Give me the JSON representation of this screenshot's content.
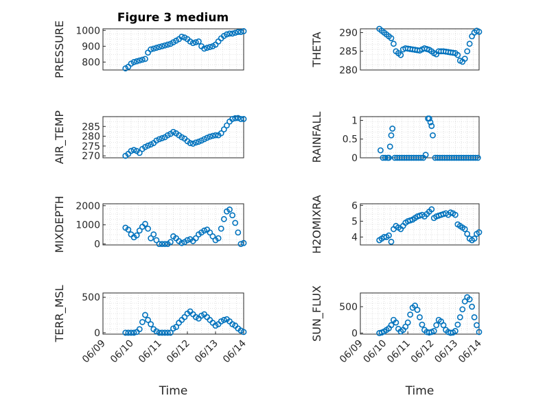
{
  "figure": {
    "title": "Figure 3 medium"
  },
  "chart_data": [
    {
      "type": "scatter",
      "ylabel": "PRESSURE",
      "xlabel": "",
      "xlim": [
        0,
        5
      ],
      "ylim": [
        750,
        1010
      ],
      "yticks": [
        800,
        900,
        1000
      ],
      "xticks": [],
      "xticklabels": [],
      "x": [
        0.8,
        0.9,
        1.0,
        1.1,
        1.2,
        1.3,
        1.4,
        1.5,
        1.6,
        1.7,
        1.8,
        1.9,
        2.0,
        2.1,
        2.2,
        2.3,
        2.4,
        2.5,
        2.6,
        2.7,
        2.8,
        2.9,
        3.0,
        3.1,
        3.2,
        3.3,
        3.4,
        3.5,
        3.6,
        3.7,
        3.8,
        3.9,
        4.0,
        4.1,
        4.2,
        4.3,
        4.4,
        4.5,
        4.6,
        4.7,
        4.8,
        4.9,
        5.0
      ],
      "values": [
        760,
        770,
        790,
        800,
        805,
        810,
        815,
        820,
        860,
        880,
        885,
        890,
        895,
        900,
        905,
        910,
        915,
        925,
        935,
        945,
        960,
        955,
        945,
        930,
        920,
        925,
        930,
        900,
        885,
        890,
        895,
        900,
        910,
        930,
        950,
        965,
        975,
        980,
        980,
        985,
        990,
        990,
        995
      ]
    },
    {
      "type": "scatter",
      "ylabel": "THETA",
      "xlabel": "",
      "xlim": [
        0,
        5
      ],
      "ylim": [
        280,
        291
      ],
      "yticks": [
        280,
        285,
        290
      ],
      "xticks": [],
      "xticklabels": [],
      "x": [
        0.8,
        0.9,
        1.0,
        1.1,
        1.2,
        1.3,
        1.4,
        1.5,
        1.6,
        1.7,
        1.8,
        1.9,
        2.0,
        2.1,
        2.2,
        2.3,
        2.4,
        2.5,
        2.6,
        2.7,
        2.8,
        2.9,
        3.0,
        3.1,
        3.2,
        3.3,
        3.4,
        3.5,
        3.6,
        3.7,
        3.8,
        3.9,
        4.0,
        4.1,
        4.2,
        4.3,
        4.4,
        4.5,
        4.6,
        4.7,
        4.8,
        4.9,
        5.0
      ],
      "values": [
        291,
        290.5,
        290,
        289.5,
        289,
        288.5,
        287,
        285,
        284.5,
        284,
        285.5,
        285.8,
        285.7,
        285.6,
        285.5,
        285.4,
        285.3,
        285.2,
        285.5,
        285.8,
        285.6,
        285.4,
        285,
        284.5,
        284.2,
        285,
        285,
        285,
        284.9,
        284.8,
        284.7,
        284.6,
        284.5,
        284,
        282.5,
        282.2,
        283,
        285,
        287,
        289,
        290,
        290.5,
        290.2
      ]
    },
    {
      "type": "scatter",
      "ylabel": "AIR_TEMP",
      "xlabel": "",
      "xlim": [
        0,
        5
      ],
      "ylim": [
        269,
        290
      ],
      "yticks": [
        270,
        275,
        280,
        285
      ],
      "xticks": [],
      "xticklabels": [],
      "x": [
        0.8,
        0.9,
        1.0,
        1.1,
        1.2,
        1.3,
        1.4,
        1.5,
        1.6,
        1.7,
        1.8,
        1.9,
        2.0,
        2.1,
        2.2,
        2.3,
        2.4,
        2.5,
        2.6,
        2.7,
        2.8,
        2.9,
        3.0,
        3.1,
        3.2,
        3.3,
        3.4,
        3.5,
        3.6,
        3.7,
        3.8,
        3.9,
        4.0,
        4.1,
        4.2,
        4.3,
        4.4,
        4.5,
        4.6,
        4.7,
        4.8,
        4.9,
        5.0
      ],
      "values": [
        270,
        271,
        272.5,
        273,
        272.5,
        271.5,
        273.5,
        274.5,
        275.2,
        275.8,
        276.5,
        277.8,
        278.5,
        279,
        279.5,
        280.5,
        281.2,
        282.2,
        281.5,
        280.5,
        279.5,
        278.8,
        277.5,
        276.5,
        276.2,
        276.8,
        277.2,
        277.8,
        278.5,
        279.2,
        279.8,
        280.2,
        280.5,
        280.5,
        281.5,
        283.5,
        285.5,
        287.5,
        288.8,
        289.2,
        289.3,
        288.8,
        288.8
      ]
    },
    {
      "type": "scatter",
      "ylabel": "RAINFALL",
      "xlabel": "",
      "xlim": [
        0,
        5
      ],
      "ylim": [
        0,
        1.1
      ],
      "yticks": [
        0,
        0.5,
        1
      ],
      "xticks": [],
      "xticklabels": [],
      "x": [
        0.85,
        0.95,
        1.05,
        1.15,
        1.2,
        1.25,
        1.3,
        1.35,
        1.45,
        1.55,
        1.65,
        1.75,
        1.85,
        1.95,
        2.05,
        2.15,
        2.25,
        2.35,
        2.45,
        2.55,
        2.65,
        2.75,
        2.85,
        2.9,
        2.95,
        3.0,
        3.05,
        3.15,
        3.25,
        3.35,
        3.45,
        3.55,
        3.65,
        3.75,
        3.85,
        3.95,
        4.05,
        4.15,
        4.25,
        4.35,
        4.45,
        4.55,
        4.65,
        4.75,
        4.85,
        4.95
      ],
      "values": [
        0.2,
        0,
        0,
        0,
        0,
        0.3,
        0.6,
        0.78,
        0,
        0,
        0,
        0,
        0,
        0,
        0,
        0,
        0,
        0,
        0,
        0,
        0,
        0.08,
        1.05,
        1.05,
        0.95,
        0.85,
        0.6,
        0,
        0,
        0,
        0,
        0,
        0,
        0,
        0,
        0,
        0,
        0,
        0,
        0,
        0,
        0,
        0,
        0,
        0,
        0
      ]
    },
    {
      "type": "scatter",
      "ylabel": "MIXDEPTH",
      "xlabel": "",
      "xlim": [
        0,
        5
      ],
      "ylim": [
        -50,
        2100
      ],
      "yticks": [
        0,
        1000,
        2000
      ],
      "xticks": [],
      "xticklabels": [],
      "x": [
        0.8,
        0.9,
        1.0,
        1.1,
        1.2,
        1.3,
        1.4,
        1.5,
        1.6,
        1.7,
        1.8,
        1.9,
        2.0,
        2.1,
        2.2,
        2.3,
        2.4,
        2.5,
        2.6,
        2.7,
        2.8,
        2.9,
        3.0,
        3.1,
        3.2,
        3.3,
        3.4,
        3.5,
        3.6,
        3.7,
        3.8,
        3.9,
        4.0,
        4.1,
        4.2,
        4.3,
        4.4,
        4.5,
        4.6,
        4.7,
        4.8,
        4.9,
        5.0
      ],
      "values": [
        850,
        750,
        500,
        350,
        450,
        700,
        900,
        1050,
        800,
        300,
        500,
        200,
        0,
        0,
        0,
        0,
        100,
        400,
        300,
        150,
        50,
        100,
        200,
        250,
        150,
        300,
        500,
        600,
        700,
        750,
        600,
        400,
        200,
        300,
        800,
        1300,
        1700,
        1800,
        1500,
        1100,
        600,
        0,
        50
      ]
    },
    {
      "type": "scatter",
      "ylabel": "H2OMIXRA",
      "xlabel": "",
      "xlim": [
        0,
        5
      ],
      "ylim": [
        3.5,
        6.1
      ],
      "yticks": [
        4,
        5,
        6
      ],
      "xticks": [],
      "xticklabels": [],
      "x": [
        0.8,
        0.9,
        1.0,
        1.1,
        1.2,
        1.3,
        1.4,
        1.5,
        1.6,
        1.7,
        1.8,
        1.9,
        2.0,
        2.1,
        2.2,
        2.3,
        2.4,
        2.5,
        2.6,
        2.7,
        2.8,
        2.9,
        3.0,
        3.1,
        3.2,
        3.3,
        3.4,
        3.5,
        3.6,
        3.7,
        3.8,
        3.9,
        4.0,
        4.1,
        4.2,
        4.3,
        4.4,
        4.5,
        4.6,
        4.7,
        4.8,
        4.9,
        5.0
      ],
      "values": [
        3.8,
        3.9,
        4.0,
        4.0,
        4.1,
        3.7,
        4.5,
        4.7,
        4.6,
        4.5,
        4.7,
        4.9,
        5.0,
        5.05,
        5.1,
        5.2,
        5.3,
        5.35,
        5.4,
        5.3,
        5.45,
        5.6,
        5.75,
        5.2,
        5.3,
        5.35,
        5.4,
        5.45,
        5.5,
        5.4,
        5.55,
        5.5,
        5.4,
        4.8,
        4.7,
        4.6,
        4.5,
        4.2,
        3.9,
        3.8,
        3.9,
        4.2,
        4.3
      ]
    },
    {
      "type": "scatter",
      "ylabel": "TERR_MSL",
      "xlabel": "Time",
      "xlim": [
        0,
        5
      ],
      "ylim": [
        -20,
        560
      ],
      "yticks": [
        0,
        500
      ],
      "xticks": [
        0,
        1,
        2,
        3,
        4,
        5
      ],
      "xticklabels": [
        "06/09",
        "06/10",
        "06/11",
        "06/12",
        "06/13",
        "06/14"
      ],
      "x": [
        0.8,
        0.9,
        1.0,
        1.1,
        1.2,
        1.3,
        1.4,
        1.5,
        1.6,
        1.7,
        1.8,
        1.9,
        2.0,
        2.1,
        2.2,
        2.3,
        2.4,
        2.5,
        2.6,
        2.7,
        2.8,
        2.9,
        3.0,
        3.1,
        3.2,
        3.3,
        3.4,
        3.5,
        3.6,
        3.7,
        3.8,
        3.9,
        4.0,
        4.1,
        4.2,
        4.3,
        4.4,
        4.5,
        4.6,
        4.7,
        4.8,
        4.9,
        5.0
      ],
      "values": [
        0,
        0,
        0,
        0,
        10,
        50,
        150,
        250,
        180,
        120,
        50,
        20,
        0,
        0,
        0,
        0,
        0,
        60,
        80,
        140,
        180,
        220,
        270,
        300,
        260,
        220,
        200,
        240,
        260,
        220,
        180,
        140,
        100,
        120,
        160,
        180,
        190,
        160,
        120,
        100,
        60,
        30,
        10
      ]
    },
    {
      "type": "scatter",
      "ylabel": "SUN_FLUX",
      "xlabel": "Time",
      "xlim": [
        0,
        5
      ],
      "ylim": [
        -20,
        760
      ],
      "yticks": [
        0,
        500
      ],
      "xticks": [
        0,
        1,
        2,
        3,
        4,
        5
      ],
      "xticklabels": [
        "06/09",
        "06/10",
        "06/11",
        "06/12",
        "06/13",
        "06/14"
      ],
      "x": [
        0.8,
        0.9,
        1.0,
        1.1,
        1.2,
        1.3,
        1.4,
        1.5,
        1.6,
        1.7,
        1.8,
        1.9,
        2.0,
        2.1,
        2.2,
        2.3,
        2.4,
        2.5,
        2.6,
        2.7,
        2.8,
        2.9,
        3.0,
        3.1,
        3.2,
        3.3,
        3.4,
        3.5,
        3.6,
        3.7,
        3.8,
        3.9,
        4.0,
        4.1,
        4.2,
        4.3,
        4.4,
        4.5,
        4.6,
        4.7,
        4.8,
        4.9,
        5.0
      ],
      "values": [
        0,
        10,
        30,
        60,
        90,
        150,
        250,
        200,
        80,
        30,
        60,
        120,
        200,
        350,
        480,
        520,
        440,
        300,
        160,
        60,
        20,
        10,
        20,
        40,
        150,
        250,
        220,
        150,
        60,
        20,
        5,
        10,
        40,
        160,
        300,
        450,
        600,
        680,
        640,
        500,
        300,
        150,
        20
      ]
    }
  ]
}
